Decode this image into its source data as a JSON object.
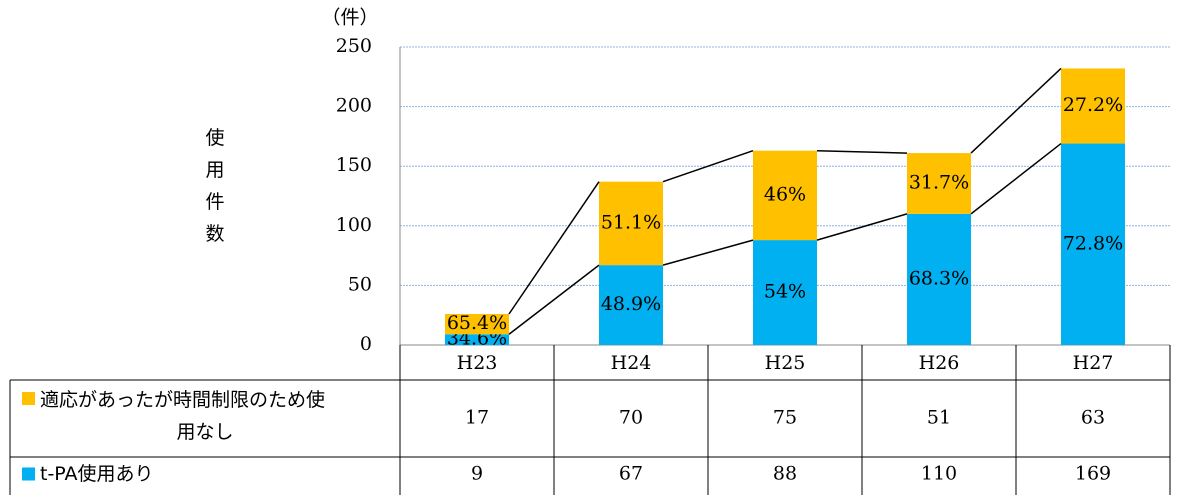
{
  "chart_data": {
    "type": "bar",
    "stacked": true,
    "y_unit": "（件）",
    "ylabel": "使用件数",
    "categories": [
      "H23",
      "H24",
      "H25",
      "H26",
      "H27"
    ],
    "series": [
      {
        "name": "適応があったが時間制限のため使用なし",
        "color": "#ffc000",
        "values": [
          17,
          70,
          75,
          51,
          63
        ],
        "value_labels": [
          "65.4%",
          "51.1%",
          "46%",
          "31.7%",
          "27.2%"
        ]
      },
      {
        "name": "t-PA使用あり",
        "color": "#00b0f0",
        "values": [
          9,
          67,
          88,
          110,
          169
        ],
        "value_labels": [
          "34.6%",
          "48.9%",
          "54%",
          "68.3%",
          "72.8%"
        ]
      }
    ],
    "stack_order": [
      1,
      0
    ],
    "ylim": [
      0,
      250
    ],
    "yticks": [
      0,
      50,
      100,
      150,
      200,
      250
    ],
    "grid": true,
    "series_lines": true
  }
}
